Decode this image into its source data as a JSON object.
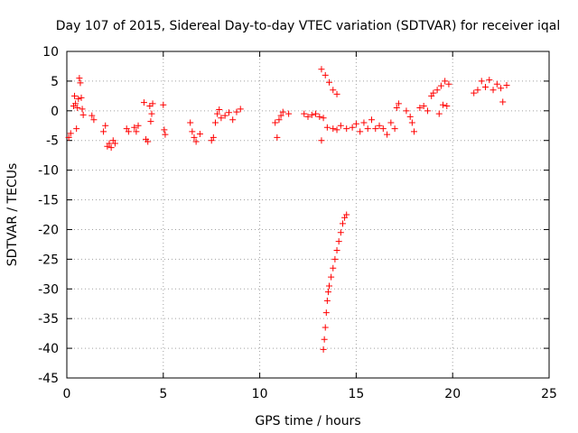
{
  "chart_data": {
    "type": "scatter",
    "title": "Day 107 of 2015, Sidereal Day-to-day VTEC variation (SDTVAR) for receiver iqal",
    "xlabel": "GPS time / hours",
    "ylabel": "SDTVAR / TECUs",
    "xlim": [
      0,
      25
    ],
    "ylim": [
      -45,
      10
    ],
    "xticks": [
      0,
      5,
      10,
      15,
      20,
      25
    ],
    "yticks": [
      10,
      5,
      0,
      -5,
      -10,
      -15,
      -20,
      -25,
      -30,
      -35,
      -40,
      -45
    ],
    "grid": true,
    "marker": "+",
    "color": "#ff0000",
    "series": [
      {
        "name": "SDTVAR",
        "points": [
          [
            0.1,
            -4.5
          ],
          [
            0.2,
            -3.8
          ],
          [
            0.35,
            0.8
          ],
          [
            0.4,
            2.5
          ],
          [
            0.45,
            1.2
          ],
          [
            0.5,
            -3.0
          ],
          [
            0.55,
            0.5
          ],
          [
            0.6,
            2.0
          ],
          [
            0.65,
            5.5
          ],
          [
            0.7,
            4.7
          ],
          [
            0.75,
            2.2
          ],
          [
            0.8,
            0.3
          ],
          [
            0.85,
            -0.7
          ],
          [
            1.3,
            -0.8
          ],
          [
            1.4,
            -1.5
          ],
          [
            1.9,
            -3.5
          ],
          [
            2.0,
            -2.5
          ],
          [
            2.1,
            -6.0
          ],
          [
            2.2,
            -5.5
          ],
          [
            2.3,
            -6.2
          ],
          [
            2.4,
            -5.0
          ],
          [
            2.5,
            -5.5
          ],
          [
            3.1,
            -3.0
          ],
          [
            3.2,
            -3.5
          ],
          [
            3.5,
            -2.8
          ],
          [
            3.6,
            -3.5
          ],
          [
            3.7,
            -2.5
          ],
          [
            4.0,
            1.4
          ],
          [
            4.1,
            -4.8
          ],
          [
            4.2,
            -5.2
          ],
          [
            4.3,
            0.8
          ],
          [
            4.35,
            -1.8
          ],
          [
            4.4,
            -0.5
          ],
          [
            4.45,
            1.2
          ],
          [
            5.0,
            1.0
          ],
          [
            5.05,
            -3.2
          ],
          [
            5.1,
            -4.0
          ],
          [
            6.4,
            -2.0
          ],
          [
            6.5,
            -3.5
          ],
          [
            6.6,
            -4.5
          ],
          [
            6.7,
            -5.2
          ],
          [
            6.9,
            -3.9
          ],
          [
            7.5,
            -5.0
          ],
          [
            7.6,
            -4.5
          ],
          [
            7.7,
            -2.0
          ],
          [
            7.8,
            -0.5
          ],
          [
            7.9,
            0.2
          ],
          [
            8.0,
            -1.2
          ],
          [
            8.2,
            -0.8
          ],
          [
            8.4,
            -0.3
          ],
          [
            8.6,
            -1.5
          ],
          [
            8.8,
            -0.2
          ],
          [
            9.0,
            0.3
          ],
          [
            10.8,
            -2.0
          ],
          [
            10.9,
            -4.5
          ],
          [
            11.0,
            -1.5
          ],
          [
            11.1,
            -0.8
          ],
          [
            11.2,
            -0.2
          ],
          [
            11.5,
            -0.5
          ],
          [
            12.3,
            -0.5
          ],
          [
            12.5,
            -1.0
          ],
          [
            12.7,
            -0.7
          ],
          [
            12.9,
            -0.5
          ],
          [
            13.1,
            -1.0
          ],
          [
            13.3,
            -1.2
          ],
          [
            13.3,
            -40.2
          ],
          [
            13.35,
            -38.5
          ],
          [
            13.4,
            -36.5
          ],
          [
            13.45,
            -34.0
          ],
          [
            13.5,
            -32.0
          ],
          [
            13.55,
            -30.5
          ],
          [
            13.6,
            -29.5
          ],
          [
            13.7,
            -28.0
          ],
          [
            13.8,
            -26.5
          ],
          [
            13.9,
            -25.0
          ],
          [
            14.0,
            -23.5
          ],
          [
            14.1,
            -22.0
          ],
          [
            14.2,
            -20.5
          ],
          [
            14.3,
            -19.0
          ],
          [
            14.4,
            -18.0
          ],
          [
            14.5,
            -17.5
          ],
          [
            13.2,
            7.0
          ],
          [
            13.4,
            6.0
          ],
          [
            13.6,
            4.8
          ],
          [
            13.8,
            3.5
          ],
          [
            14.0,
            2.8
          ],
          [
            13.2,
            -5.0
          ],
          [
            13.5,
            -2.8
          ],
          [
            13.8,
            -3.0
          ],
          [
            14.0,
            -3.2
          ],
          [
            14.2,
            -2.5
          ],
          [
            14.5,
            -3.0
          ],
          [
            14.8,
            -2.8
          ],
          [
            15.0,
            -2.2
          ],
          [
            15.2,
            -3.5
          ],
          [
            15.4,
            -2.0
          ],
          [
            15.6,
            -3.0
          ],
          [
            15.8,
            -1.5
          ],
          [
            16.0,
            -3.0
          ],
          [
            16.2,
            -2.5
          ],
          [
            16.4,
            -3.0
          ],
          [
            16.6,
            -4.0
          ],
          [
            16.8,
            -2.0
          ],
          [
            17.0,
            -3.0
          ],
          [
            17.1,
            0.5
          ],
          [
            17.2,
            1.2
          ],
          [
            17.6,
            0.0
          ],
          [
            17.8,
            -1.0
          ],
          [
            17.9,
            -2.0
          ],
          [
            18.0,
            -3.5
          ],
          [
            18.3,
            0.5
          ],
          [
            18.5,
            0.8
          ],
          [
            18.7,
            0.0
          ],
          [
            18.9,
            2.5
          ],
          [
            19.0,
            3.0
          ],
          [
            19.2,
            3.5
          ],
          [
            19.4,
            4.2
          ],
          [
            19.6,
            5.0
          ],
          [
            19.8,
            4.5
          ],
          [
            19.3,
            -0.5
          ],
          [
            19.5,
            1.0
          ],
          [
            19.7,
            0.8
          ],
          [
            21.1,
            3.0
          ],
          [
            21.3,
            3.5
          ],
          [
            21.5,
            5.0
          ],
          [
            21.7,
            4.0
          ],
          [
            21.9,
            5.2
          ],
          [
            22.1,
            3.5
          ],
          [
            22.3,
            4.5
          ],
          [
            22.5,
            3.8
          ],
          [
            22.6,
            1.5
          ],
          [
            22.8,
            4.3
          ]
        ]
      }
    ]
  }
}
